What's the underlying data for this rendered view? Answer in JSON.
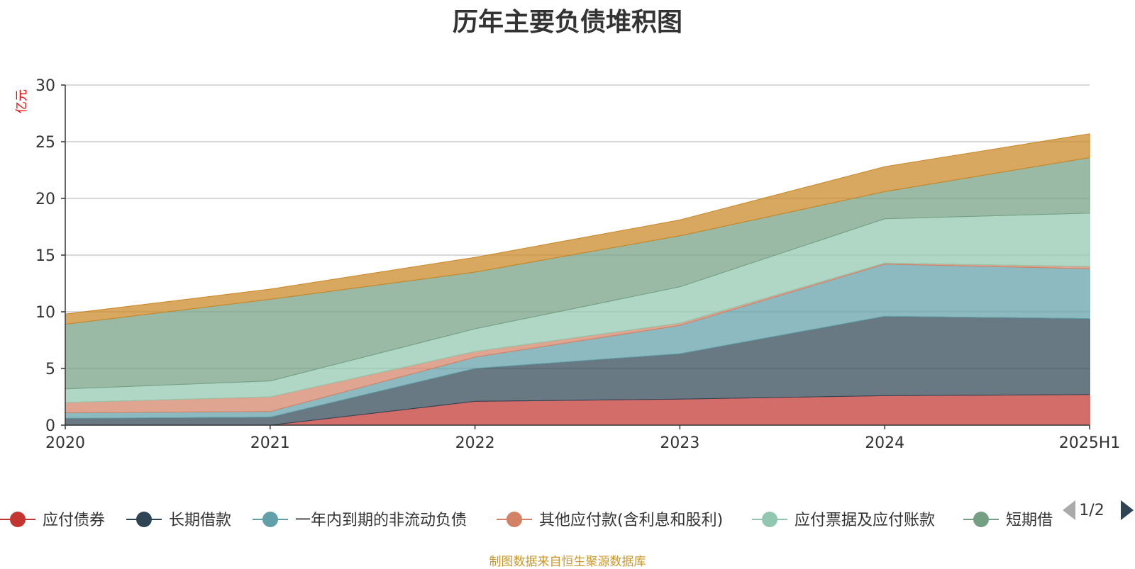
{
  "chart_data": {
    "type": "area",
    "stacked": true,
    "title": "历年主要负债堆积图",
    "ylabel": "亿元",
    "ylim": [
      0,
      30
    ],
    "yticks": [
      0,
      5,
      10,
      15,
      20,
      25,
      30
    ],
    "x": [
      "2020",
      "2021",
      "2022",
      "2023",
      "2024",
      "2025H1"
    ],
    "grid": true,
    "legend_position": "bottom",
    "series": [
      {
        "name": "应付债券",
        "color": "#c23531",
        "values": [
          0,
          0,
          2.1,
          2.3,
          2.6,
          2.7
        ]
      },
      {
        "name": "长期借款",
        "color": "#2f4554",
        "values": [
          0.6,
          0.7,
          2.9,
          4.0,
          7.0,
          6.7
        ]
      },
      {
        "name": "一年内到期的非流动负债",
        "color": "#61a0a8",
        "values": [
          0.5,
          0.5,
          1.0,
          2.5,
          4.6,
          4.4
        ]
      },
      {
        "name": "其他应付款(含利息和股利)",
        "color": "#d48265",
        "values": [
          0.9,
          1.3,
          0.5,
          0.2,
          0.1,
          0.2
        ]
      },
      {
        "name": "应付票据及应付账款",
        "color": "#91c7ae",
        "values": [
          1.2,
          1.4,
          2.0,
          3.2,
          3.9,
          4.7
        ]
      },
      {
        "name": "短期借款",
        "color": "#749f83",
        "values": [
          5.7,
          7.2,
          5.0,
          4.5,
          2.4,
          4.9
        ]
      },
      {
        "name": "",
        "color": "#ca8622",
        "values": [
          0.9,
          0.9,
          1.3,
          1.4,
          2.2,
          2.1
        ]
      }
    ],
    "legend_entries": [
      {
        "label": "应付债券",
        "color": "#c23531"
      },
      {
        "label": "长期借款",
        "color": "#2f4554"
      },
      {
        "label": "一年内到期的非流动负债",
        "color": "#61a0a8"
      },
      {
        "label": "其他应付款(含利息和股利)",
        "color": "#d48265"
      },
      {
        "label": "应付票据及应付账款",
        "color": "#91c7ae"
      },
      {
        "label": "短期借",
        "color": "#749f83"
      }
    ],
    "legend_page": "1/2"
  },
  "source_note": "制图数据来自恒生聚源数据库"
}
